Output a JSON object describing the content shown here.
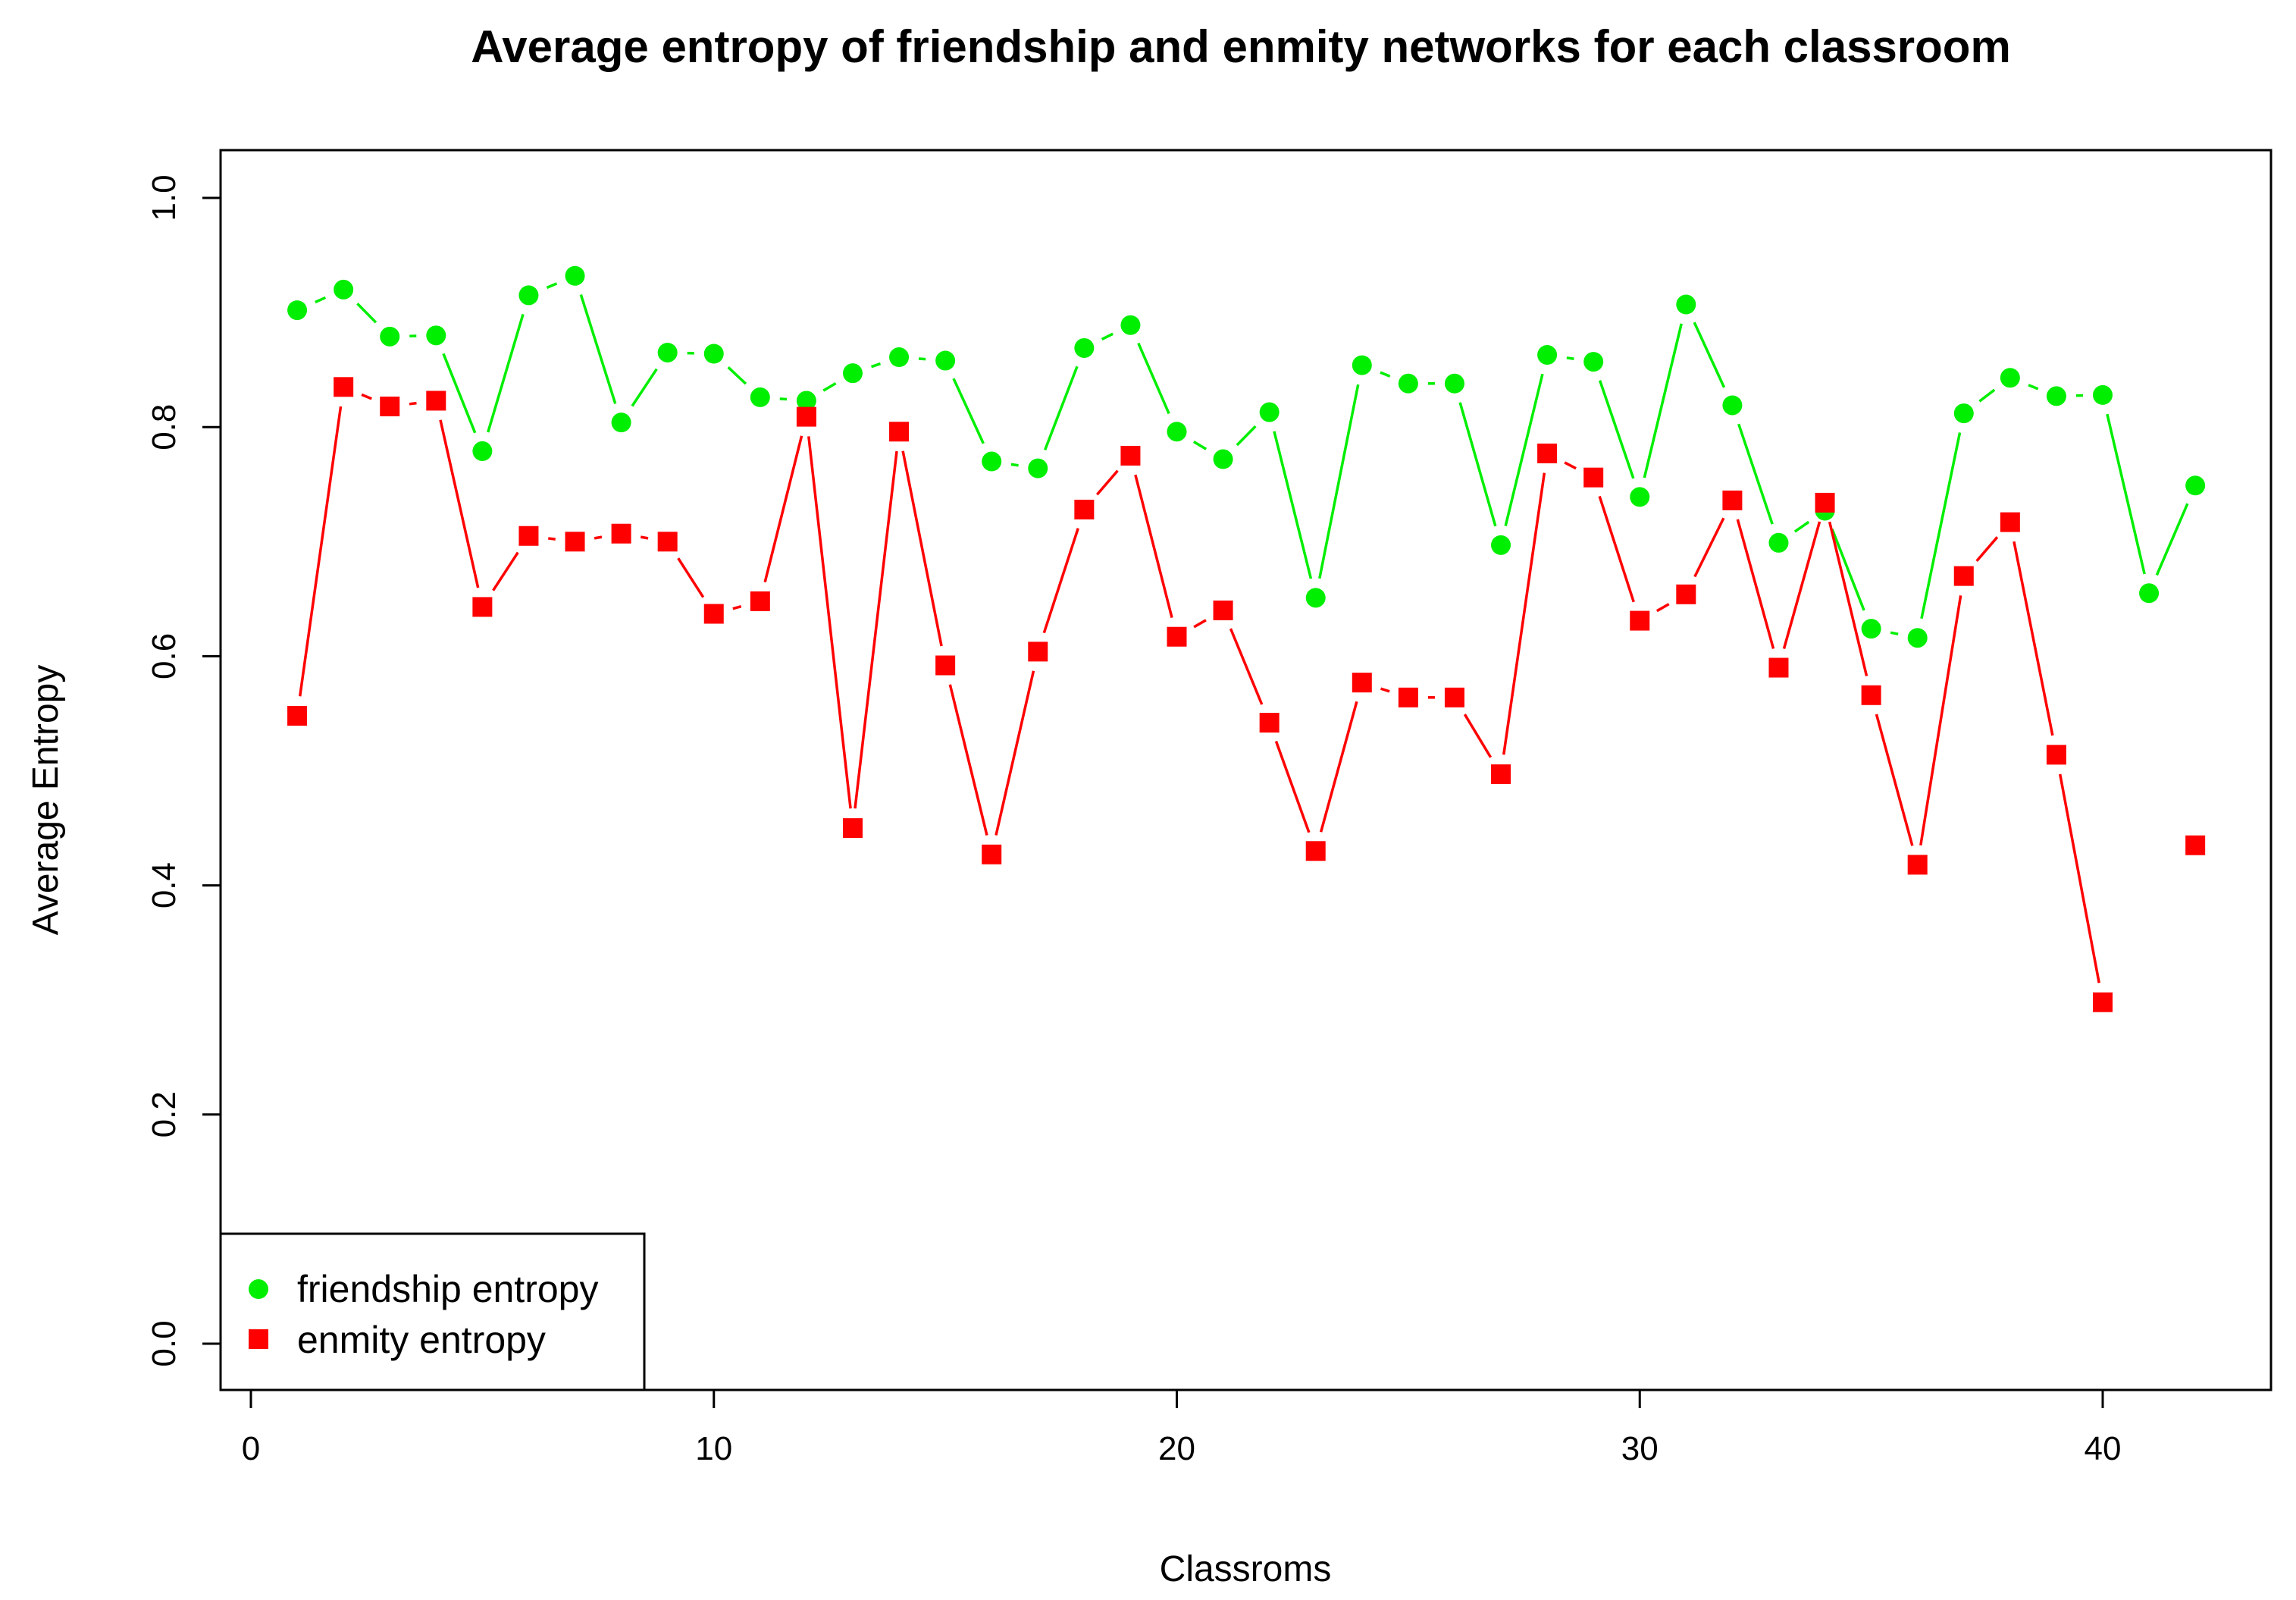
{
  "chart_data": {
    "type": "line",
    "title": "Average entropy of friendship and enmity networks for each classroom",
    "xlabel": "Classroms",
    "ylabel": "Average Entropy",
    "xlim": [
      0,
      42
    ],
    "ylim": [
      0,
      1
    ],
    "xticks": [
      "0",
      "10",
      "20",
      "30",
      "40"
    ],
    "yticks": [
      "0.0",
      "0.2",
      "0.4",
      "0.6",
      "0.8",
      "1.0"
    ],
    "grid": false,
    "legend_position": "bottom-left",
    "x": [
      1,
      2,
      3,
      4,
      5,
      6,
      7,
      8,
      9,
      10,
      11,
      12,
      13,
      14,
      15,
      16,
      17,
      18,
      19,
      20,
      21,
      22,
      23,
      24,
      25,
      26,
      27,
      28,
      29,
      30,
      31,
      32,
      33,
      34,
      35,
      36,
      37,
      38,
      39,
      40,
      41,
      42
    ],
    "series": [
      {
        "name": "friendship entropy",
        "color": "#00ee00",
        "marker": "circle",
        "values": [
          0.902,
          0.92,
          0.879,
          0.88,
          0.779,
          0.915,
          0.932,
          0.804,
          0.865,
          0.864,
          0.826,
          0.823,
          0.847,
          0.861,
          0.858,
          0.77,
          0.764,
          0.869,
          0.889,
          0.796,
          0.772,
          0.813,
          0.651,
          0.854,
          0.838,
          0.838,
          0.697,
          0.863,
          0.857,
          0.739,
          0.907,
          0.819,
          0.699,
          0.727,
          0.624,
          0.616,
          0.812,
          0.843,
          0.827,
          0.828,
          0.655,
          0.749
        ]
      },
      {
        "name": "enmity entropy",
        "color": "#ff0000",
        "marker": "square",
        "values": [
          0.548,
          0.835,
          0.818,
          0.823,
          0.643,
          0.705,
          0.7,
          0.707,
          0.7,
          0.637,
          0.648,
          0.809,
          0.45,
          0.796,
          0.592,
          0.427,
          0.604,
          0.728,
          0.775,
          0.617,
          0.64,
          0.542,
          0.43,
          0.577,
          0.564,
          0.564,
          0.497,
          0.777,
          0.756,
          0.631,
          0.654,
          0.736,
          0.59,
          0.734,
          0.566,
          0.418,
          0.67,
          0.717,
          0.514,
          0.298,
          null,
          0.435
        ]
      }
    ]
  }
}
